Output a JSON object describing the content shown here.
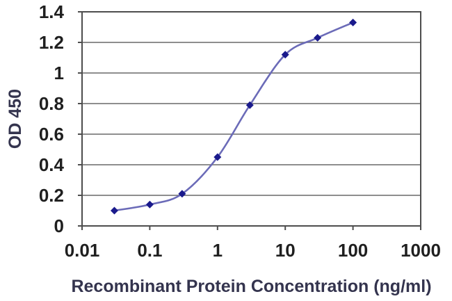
{
  "chart_data": {
    "type": "line",
    "title": "",
    "xlabel": "Recombinant Protein Concentration (ng/ml)",
    "ylabel": "OD 450",
    "x_scale": "log",
    "y_scale": "linear",
    "xlim": [
      0.01,
      1000
    ],
    "ylim": [
      0,
      1.4
    ],
    "x_tick_values": [
      0.01,
      0.1,
      1,
      10,
      100,
      1000
    ],
    "x_tick_labels": [
      "0.01",
      "0.1",
      "1",
      "10",
      "100",
      "1000"
    ],
    "y_tick_values": [
      0,
      0.2,
      0.4,
      0.6,
      0.8,
      1,
      1.2,
      1.4
    ],
    "y_tick_labels": [
      "0",
      "0.2",
      "0.4",
      "0.6",
      "0.8",
      "1",
      "1.2",
      "1.4"
    ],
    "grid": "horizontal-major",
    "legend": "none",
    "series": [
      {
        "marker": "diamond",
        "line_style": "smooth",
        "x": [
          0.03,
          0.1,
          0.3,
          1,
          3,
          10,
          30,
          100
        ],
        "y": [
          0.1,
          0.14,
          0.21,
          0.45,
          0.79,
          1.12,
          1.23,
          1.33
        ]
      }
    ]
  },
  "colors": {
    "background": "#ffffff",
    "plot_background": "#ffffff",
    "line": "#6b6bb8",
    "marker": "#1a1a8c",
    "gridline": "#7e7e7e",
    "axis": "#4d4d4d",
    "tick_label": "#1f1f1f",
    "axis_title": "#34344e"
  }
}
